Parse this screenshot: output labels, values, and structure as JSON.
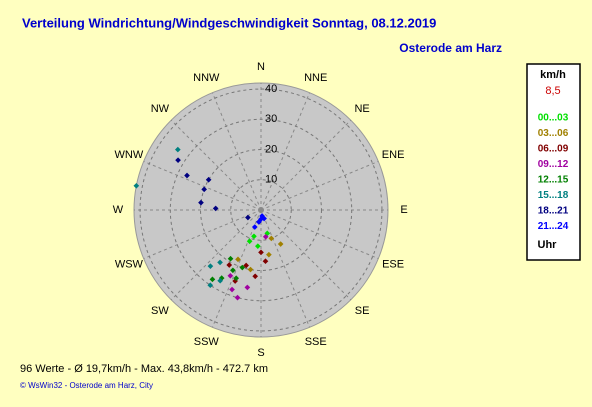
{
  "chart_data": {
    "type": "polar-scatter",
    "title": "Verteilung Windrichtung/Windgeschwindigkeit  Sonntag, 08.12.2019",
    "subtitle": "Osterode am Harz",
    "directions": [
      "N",
      "NNE",
      "NE",
      "ENE",
      "E",
      "ESE",
      "SE",
      "SSE",
      "S",
      "SSW",
      "SW",
      "WSW",
      "W",
      "WNW",
      "NW",
      "NNW"
    ],
    "rlim": [
      0,
      42
    ],
    "rticks": [
      10,
      20,
      30,
      40
    ],
    "grid": true,
    "legend_unit": "km/h",
    "legend_value": "8,5",
    "legend_footer": "Uhr",
    "series": [
      {
        "name": "00...03",
        "color": "#00e000",
        "x": [
          200,
          195,
          165,
          185
        ],
        "values": [
          11,
          9,
          8,
          12
        ]
      },
      {
        "name": "03...06",
        "color": "#a08000",
        "x": [
          150,
          160,
          170,
          205,
          190
        ],
        "values": [
          13,
          10,
          15,
          18,
          20
        ]
      },
      {
        "name": "06...09",
        "color": "#800000",
        "x": [
          175,
          185,
          195,
          200,
          210,
          180
        ],
        "values": [
          17,
          22,
          19,
          25,
          21,
          14
        ]
      },
      {
        "name": "09...12",
        "color": "#a000a0",
        "x": [
          195,
          200,
          190,
          170,
          205
        ],
        "values": [
          30,
          28,
          26,
          9,
          24
        ]
      },
      {
        "name": "12...15",
        "color": "#008000",
        "x": [
          205,
          210,
          215,
          200,
          212,
          198
        ],
        "values": [
          22,
          26,
          28,
          24,
          19,
          20
        ]
      },
      {
        "name": "15...18",
        "color": "#008080",
        "x": [
          218,
          214,
          222,
          306,
          281,
          210
        ],
        "values": [
          22,
          30,
          25,
          34,
          42,
          27
        ]
      },
      {
        "name": "18...21",
        "color": "#000080",
        "x": [
          301,
          300,
          290,
          277,
          272,
          295,
          240,
          190
        ],
        "values": [
          32,
          20,
          20,
          20,
          15,
          27,
          5,
          4
        ]
      },
      {
        "name": "21...24",
        "color": "#0000ff",
        "x": [
          160,
          190,
          170,
          180,
          200
        ],
        "values": [
          3,
          4,
          2,
          3,
          6
        ]
      }
    ],
    "footer": "96 Werte   -   Ø 19,7km/h  -  Max. 43,8km/h   -   472.7 km",
    "credit": "© WsWin32  -  Osterode am Harz, City"
  }
}
